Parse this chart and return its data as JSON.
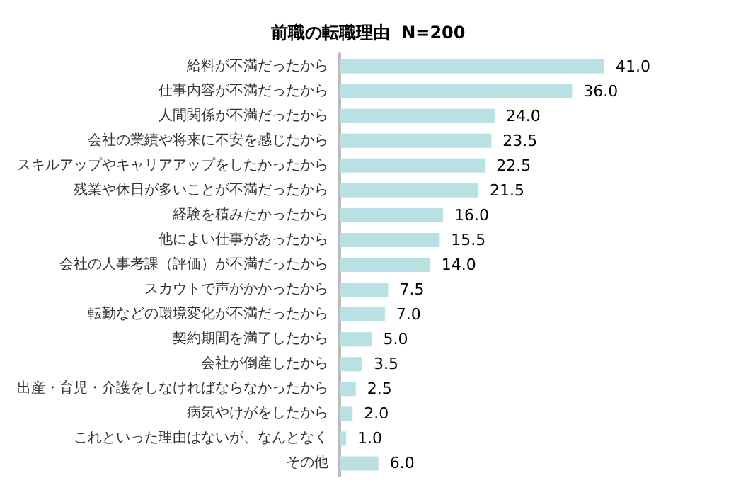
{
  "chart_data": {
    "type": "bar",
    "orientation": "horizontal",
    "title": "前職の転職理由  N=200",
    "categories": [
      "給料が不満だったから",
      "仕事内容が不満だったから",
      "人間関係が不満だったから",
      "会社の業績や将来に不安を感じたから",
      "スキルアップやキャリアアップをしたかったから",
      "残業や休日が多いことが不満だったから",
      "経験を積みたかったから",
      "他によい仕事があったから",
      "会社の人事考課（評価）が不満だったから",
      "スカウトで声がかかったから",
      "転勤などの環境変化が不満だったから",
      "契約期間を満了したから",
      "会社が倒産したから",
      "出産・育児・介護をしなければならなかったから",
      "病気やけがをしたから",
      "これといった理由はないが、なんとなく",
      "その他"
    ],
    "values": [
      41.0,
      36.0,
      24.0,
      23.5,
      22.5,
      21.5,
      16.0,
      15.5,
      14.0,
      7.5,
      7.0,
      5.0,
      3.5,
      2.5,
      2.0,
      1.0,
      6.0
    ],
    "value_labels": [
      "41.0",
      "36.0",
      "24.0",
      "23.5",
      "22.5",
      "21.5",
      "16.0",
      "15.5",
      "14.0",
      "7.5",
      "7.0",
      "5.0",
      "3.5",
      "2.5",
      "2.0",
      "1.0",
      "6.0"
    ],
    "color": "#b9e0e3"
  }
}
